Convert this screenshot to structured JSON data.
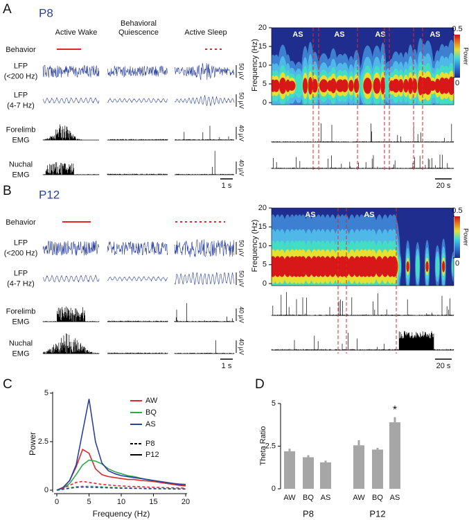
{
  "panels": [
    {
      "letter": "A",
      "age": "P8",
      "column_headers": [
        [
          "Active Wake"
        ],
        [
          "Behavioral",
          "Quiescence"
        ],
        [
          "Active Sleep"
        ]
      ],
      "rows": [
        [
          "Behavior"
        ],
        [
          "LFP",
          "(<200 Hz)"
        ],
        [
          "LFP",
          "(4-7 Hz)"
        ],
        [
          "Forelimb",
          "EMG"
        ],
        [
          "Nuchal",
          "EMG"
        ]
      ],
      "scale_labels": [
        "50 µV",
        "50 µV",
        "40 µV",
        "40 µV"
      ],
      "time_scale": "1 s",
      "spectrogram": {
        "ylabel": "Frequency (Hz)",
        "ylim": [
          0,
          20
        ],
        "yticks": [
          0,
          5,
          10,
          15,
          20
        ],
        "colorbar_ticks": [
          0,
          0.5
        ],
        "colorbar_label": "Power",
        "annotations": [
          "AS",
          "AS",
          "AS",
          "AS"
        ],
        "time_scale": "20 s"
      }
    },
    {
      "letter": "B",
      "age": "P12",
      "rows": [
        [
          "Behavior"
        ],
        [
          "LFP",
          "(<200 Hz)"
        ],
        [
          "LFP",
          "(4-7 Hz)"
        ],
        [
          "Forelimb",
          "EMG"
        ],
        [
          "Nuchal",
          "EMG"
        ]
      ],
      "scale_labels": [
        "50 µV",
        "50 µV",
        "40 µV",
        "40 µV"
      ],
      "time_scale": "1 s",
      "spectrogram": {
        "ylabel": "Frequency (Hz)",
        "ylim": [
          0,
          20
        ],
        "yticks": [
          0,
          5,
          10,
          15,
          20
        ],
        "colorbar_ticks": [
          0,
          0.5
        ],
        "colorbar_label": "Power",
        "annotations": [
          "AS",
          "AS"
        ],
        "time_scale": "20 s"
      }
    }
  ],
  "chart_data": [
    {
      "type": "line",
      "label": "C",
      "xlabel": "Frequency (Hz)",
      "ylabel": "Power",
      "x": [
        0,
        1,
        2,
        3,
        4,
        5,
        6,
        7,
        8,
        9,
        10,
        11,
        12,
        13,
        14,
        15,
        16,
        17,
        18,
        19,
        20
      ],
      "xlim": [
        0,
        20
      ],
      "xticks": [
        0,
        5,
        10,
        15,
        20
      ],
      "ylim": [
        0,
        5
      ],
      "yticks": [
        0,
        2.5,
        5
      ],
      "series": [
        {
          "name": "AW",
          "group": "P12",
          "color": "#e0262b",
          "dash": false,
          "values": [
            0,
            0.15,
            0.5,
            1.2,
            2.1,
            1.9,
            1.1,
            0.8,
            0.7,
            0.65,
            0.6,
            0.55,
            0.55,
            0.5,
            0.48,
            0.45,
            0.4,
            0.35,
            0.3,
            0.25,
            0.22
          ]
        },
        {
          "name": "BQ",
          "group": "P12",
          "color": "#2ea84a",
          "dash": false,
          "values": [
            0,
            0.1,
            0.35,
            0.8,
            1.3,
            1.55,
            1.5,
            1.35,
            1.1,
            0.95,
            0.85,
            0.75,
            0.7,
            0.62,
            0.55,
            0.5,
            0.45,
            0.4,
            0.35,
            0.32,
            0.3
          ]
        },
        {
          "name": "AS",
          "group": "P12",
          "color": "#2a3f9e",
          "dash": false,
          "values": [
            0,
            0.15,
            0.5,
            1.3,
            3.0,
            4.7,
            2.5,
            1.4,
            1.0,
            0.85,
            0.75,
            0.7,
            0.65,
            0.6,
            0.55,
            0.5,
            0.45,
            0.4,
            0.35,
            0.3,
            0.28
          ]
        },
        {
          "name": "AW",
          "group": "P8",
          "color": "#e0262b",
          "dash": true,
          "values": [
            0,
            0.1,
            0.25,
            0.4,
            0.45,
            0.4,
            0.35,
            0.3,
            0.27,
            0.24,
            0.22,
            0.2,
            0.19,
            0.18,
            0.16,
            0.15,
            0.14,
            0.13,
            0.12,
            0.11,
            0.1
          ]
        },
        {
          "name": "BQ",
          "group": "P8",
          "color": "#2ea84a",
          "dash": true,
          "values": [
            0,
            0.05,
            0.12,
            0.18,
            0.2,
            0.2,
            0.19,
            0.17,
            0.15,
            0.14,
            0.13,
            0.12,
            0.11,
            0.1,
            0.1,
            0.09,
            0.09,
            0.08,
            0.08,
            0.07,
            0.07
          ]
        },
        {
          "name": "AS",
          "group": "P8",
          "color": "#2a3f9e",
          "dash": true,
          "values": [
            0,
            0.05,
            0.1,
            0.14,
            0.16,
            0.15,
            0.14,
            0.13,
            0.12,
            0.11,
            0.1,
            0.1,
            0.09,
            0.09,
            0.08,
            0.08,
            0.07,
            0.07,
            0.06,
            0.06,
            0.06
          ]
        }
      ]
    },
    {
      "type": "bar",
      "label": "D",
      "ylabel": "Theta Ratio",
      "categories": [
        "AW",
        "BQ",
        "AS",
        "AW",
        "BQ",
        "AS"
      ],
      "groups": [
        "P8",
        "P12"
      ],
      "values": [
        2.2,
        1.85,
        1.55,
        2.55,
        2.3,
        3.9
      ],
      "errors": [
        0.15,
        0.12,
        0.1,
        0.3,
        0.1,
        0.3
      ],
      "color": "#a6a6a6",
      "ylim": [
        0,
        5
      ],
      "yticks": [
        0,
        2.5,
        5
      ],
      "annotation": "*"
    }
  ]
}
